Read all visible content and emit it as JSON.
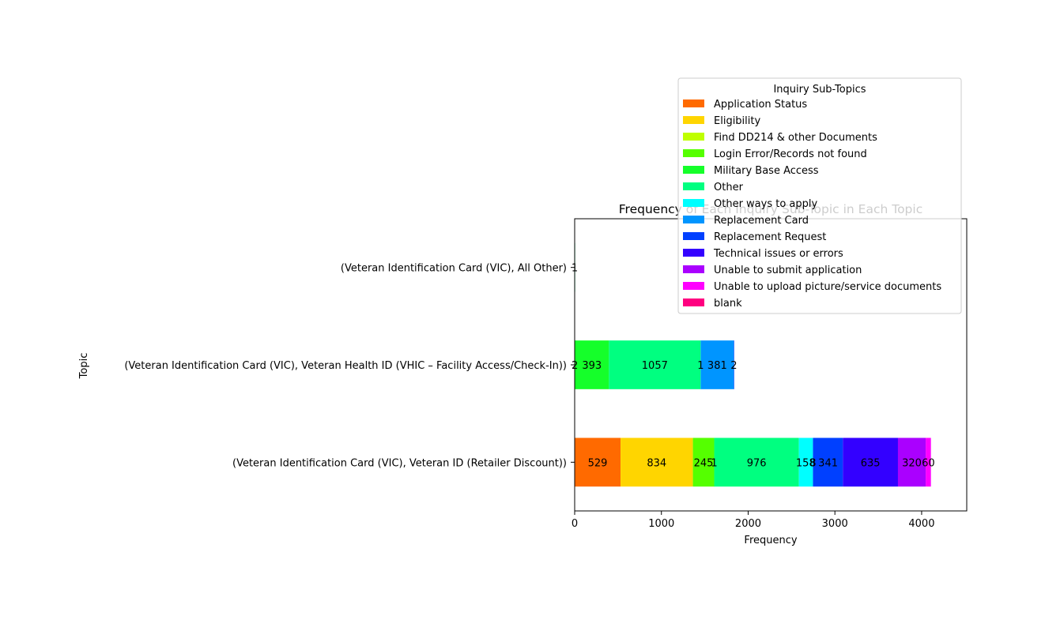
{
  "chart_data": {
    "type": "bar",
    "orientation": "horizontal",
    "stacked": true,
    "title": "Frequency of Each Inquiry Sub-Topic in Each Topic",
    "xlabel": "Frequency",
    "ylabel": "Topic",
    "xlim": [
      0,
      4520
    ],
    "xticks": [
      0,
      1000,
      2000,
      3000,
      4000
    ],
    "xtick_labels": [
      "0",
      "1000",
      "2000",
      "3000",
      "4000"
    ],
    "grid": false,
    "legend": {
      "title": "Inquiry Sub-Topics",
      "placement": "upper-right (extends above plot area)"
    },
    "categories": [
      "(Veteran Identification Card (VIC), Veteran ID (Retailer Discount))",
      "(Veteran Identification Card (VIC), Veteran Health ID (VHIC – Facility Access/Check-In))",
      "(Veteran Identification Card (VIC), All Other)"
    ],
    "series": [
      {
        "name": "Application Status",
        "color": "#ff6a00",
        "values": [
          529,
          0,
          0
        ],
        "labels": [
          "529",
          "",
          ""
        ]
      },
      {
        "name": "Eligibility",
        "color": "#ffd500",
        "values": [
          834,
          0,
          0
        ],
        "labels": [
          "834",
          "",
          ""
        ]
      },
      {
        "name": "Find DD214  & other Documents",
        "color": "#bfff00",
        "values": [
          0,
          0,
          0
        ],
        "labels": [
          "",
          "",
          ""
        ]
      },
      {
        "name": "Login Error/Records not found",
        "color": "#55ff00",
        "values": [
          245,
          2,
          0
        ],
        "labels": [
          "245",
          "2",
          ""
        ]
      },
      {
        "name": "Military Base Access",
        "color": "#15ff2a",
        "values": [
          1,
          393,
          0
        ],
        "labels": [
          "1",
          "393",
          ""
        ]
      },
      {
        "name": "Other",
        "color": "#00ff80",
        "values": [
          976,
          1057,
          1
        ],
        "labels": [
          "976",
          "1057",
          "1"
        ]
      },
      {
        "name": "Other ways to apply",
        "color": "#00ffff",
        "values": [
          158,
          1,
          0
        ],
        "labels": [
          "158",
          "1",
          ""
        ]
      },
      {
        "name": "Replacement Card",
        "color": "#0095ff",
        "values": [
          8,
          381,
          0
        ],
        "labels": [
          "8",
          "381",
          ""
        ]
      },
      {
        "name": "Replacement Request",
        "color": "#0040ff",
        "values": [
          341,
          2,
          0
        ],
        "labels": [
          "341",
          "2",
          ""
        ]
      },
      {
        "name": "Technical issues or errors",
        "color": "#3300ff",
        "values": [
          635,
          0,
          0
        ],
        "labels": [
          "635",
          "",
          ""
        ]
      },
      {
        "name": "Unable to submit application",
        "color": "#aa00ff",
        "values": [
          320,
          0,
          0
        ],
        "labels": [
          "320",
          "",
          ""
        ]
      },
      {
        "name": "Unable to upload picture/service documents",
        "color": "#ff00ff",
        "values": [
          60,
          0,
          0
        ],
        "labels": [
          "60",
          "",
          ""
        ]
      },
      {
        "name": "blank",
        "color": "#ff0080",
        "values": [
          0,
          0,
          0
        ],
        "labels": [
          "",
          "",
          ""
        ]
      }
    ]
  }
}
